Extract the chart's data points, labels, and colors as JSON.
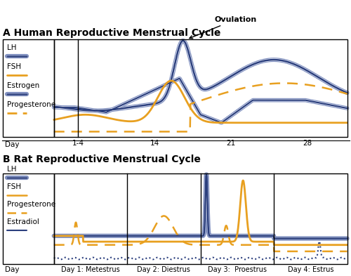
{
  "title_A": "A Human Reproductive Menstrual Cycle",
  "title_B": "B Rat Reproductive Menstrual Cycle",
  "color_blue": "#2B3F7E",
  "color_blue_light": "#8090C0",
  "color_orange": "#E8A020",
  "bg_color": "#FFFFFF",
  "legend_labels_A": [
    "LH",
    "FSH",
    "Estrogen",
    "Progesterone"
  ],
  "legend_labels_B": [
    "LH",
    "FSH",
    "Progesterone",
    "Estradiol"
  ],
  "xtick_labels_A": [
    "1-4",
    "14",
    "21",
    "28"
  ],
  "xtick_labels_B": [
    "Day 1: Metestrus",
    "Day 2: Diestrus",
    "Day 3:  Proestrus",
    "Day 4: Estrus"
  ],
  "ovulation_text": "Ovulation"
}
